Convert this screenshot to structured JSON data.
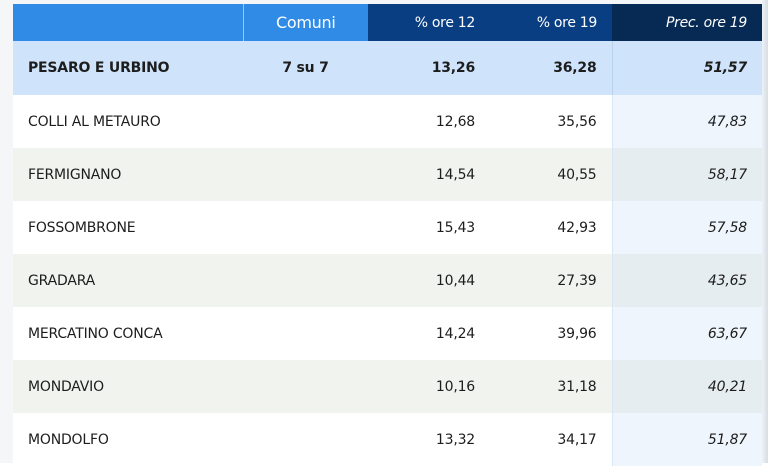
{
  "header": {
    "name": "",
    "comuni": "Comuni",
    "pct_12": "% ore 12",
    "pct_19": "% ore 19",
    "prev_19": "Prec. ore 19"
  },
  "total": {
    "name": "PESARO E URBINO",
    "comuni": "7 su 7",
    "pct_12": "13,26",
    "pct_19": "36,28",
    "prev_19": "51,57"
  },
  "rows": [
    {
      "name": "COLLI AL METAURO",
      "pct_12": "12,68",
      "pct_19": "35,56",
      "prev_19": "47,83"
    },
    {
      "name": "FERMIGNANO",
      "pct_12": "14,54",
      "pct_19": "40,55",
      "prev_19": "58,17"
    },
    {
      "name": "FOSSOMBRONE",
      "pct_12": "15,43",
      "pct_19": "42,93",
      "prev_19": "57,58"
    },
    {
      "name": "GRADARA",
      "pct_12": "10,44",
      "pct_19": "27,39",
      "prev_19": "43,65"
    },
    {
      "name": "MERCATINO CONCA",
      "pct_12": "14,24",
      "pct_19": "39,96",
      "prev_19": "63,67"
    },
    {
      "name": "MONDAVIO",
      "pct_12": "10,16",
      "pct_19": "31,18",
      "prev_19": "40,21"
    },
    {
      "name": "MONDOLFO",
      "pct_12": "13,32",
      "pct_19": "34,17",
      "prev_19": "51,87"
    }
  ],
  "colors": {
    "header_light": "#2f8be6",
    "header_dark": "#0a3e82",
    "header_darkest": "#062a54",
    "total_row": "#cfe4fb"
  }
}
